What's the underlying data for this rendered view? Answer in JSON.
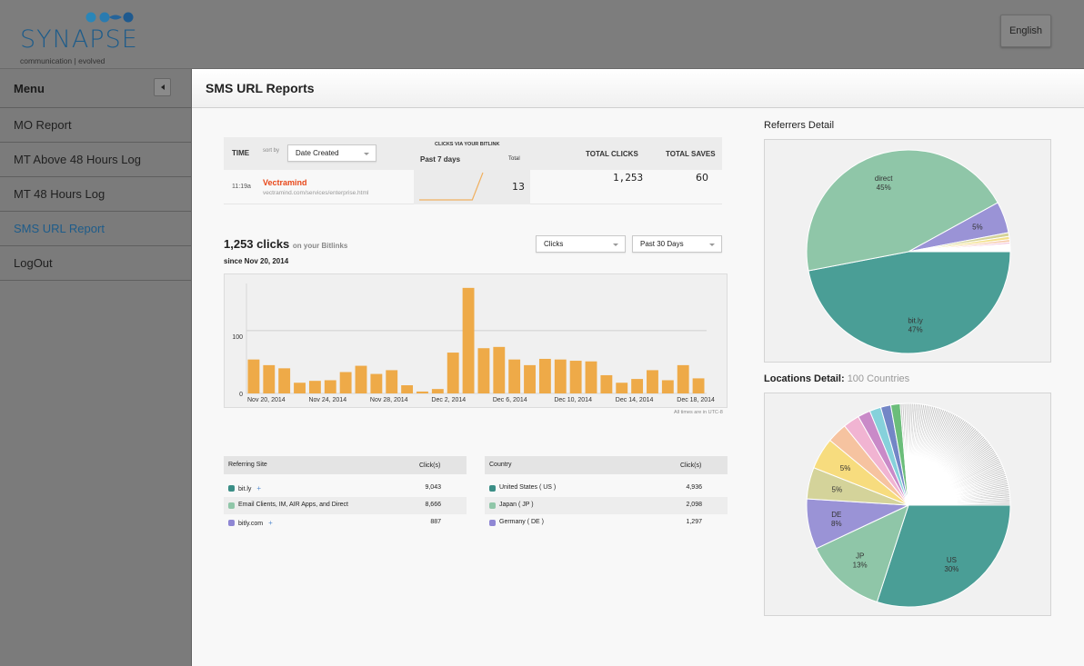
{
  "header": {
    "logo_word": "SYNAPSE",
    "logo_tagline": "communication | evolved",
    "language_button": "English"
  },
  "sidebar": {
    "title": "Menu",
    "items": [
      {
        "label": "MO Report",
        "active": false
      },
      {
        "label": "MT Above 48 Hours Log",
        "active": false
      },
      {
        "label": "MT 48 Hours Log",
        "active": false
      },
      {
        "label": "SMS URL Report",
        "active": true
      },
      {
        "label": "LogOut",
        "active": false
      }
    ]
  },
  "page": {
    "title": "SMS URL Reports"
  },
  "link_table": {
    "col_time": "TIME",
    "sort_by_label": "sort by",
    "sort_by_value": "Date Created",
    "clicks_via_label": "CLICKS VIA YOUR BITLINK",
    "past_7_days": "Past 7 days",
    "total_label": "Total",
    "col_total_clicks": "TOTAL CLICKS",
    "col_total_saves": "TOTAL SAVES",
    "row": {
      "time": "11:19a",
      "title": "Vectramind",
      "url": "vectramind.com/services/enterprise.html",
      "past7_total": "13",
      "total_clicks": "1,253",
      "total_saves": "60",
      "sparkline": [
        0,
        0,
        0,
        0,
        0,
        0,
        13
      ]
    }
  },
  "clicks_summary": {
    "count": "1,253 clicks",
    "suffix": "on your Bitlinks",
    "since": "since Nov 20, 2014",
    "metric_select": "Clicks",
    "range_select": "Past 30 Days",
    "timezone_note": "All times are in UTC-8"
  },
  "chart_data": [
    {
      "type": "bar",
      "title": "Clicks per day",
      "categories": [
        "Nov 20",
        "Nov 21",
        "Nov 22",
        "Nov 23",
        "Nov 24",
        "Nov 25",
        "Nov 26",
        "Nov 27",
        "Nov 28",
        "Nov 29",
        "Nov 30",
        "Dec 1",
        "Dec 2",
        "Dec 3",
        "Dec 4",
        "Dec 5",
        "Dec 6",
        "Dec 7",
        "Dec 8",
        "Dec 9",
        "Dec 10",
        "Dec 11",
        "Dec 12",
        "Dec 13",
        "Dec 14",
        "Dec 15",
        "Dec 16",
        "Dec 17",
        "Dec 18",
        "Dec 19"
      ],
      "values": [
        54,
        45,
        40,
        17,
        20,
        21,
        34,
        44,
        31,
        37,
        13,
        3,
        7,
        65,
        168,
        72,
        74,
        54,
        45,
        55,
        54,
        52,
        51,
        29,
        17,
        23,
        37,
        21,
        45,
        24
      ],
      "xtick_labels": [
        "Nov 20, 2014",
        "Nov 24, 2014",
        "Nov 28, 2014",
        "Dec 2, 2014",
        "Dec 6, 2014",
        "Dec 10, 2014",
        "Dec 14, 2014",
        "Dec 18, 2014"
      ],
      "xtick_indices": [
        0,
        4,
        8,
        12,
        16,
        20,
        24,
        28
      ],
      "yticks": [
        0,
        100
      ],
      "ylim": [
        0,
        175
      ],
      "grid": true,
      "color": "#eeaa48"
    },
    {
      "type": "pie",
      "title": "Referrers Detail",
      "slices": [
        {
          "label": "bit.ly",
          "value": 47,
          "color": "#4a9e96",
          "show_label": true
        },
        {
          "label": "direct",
          "value": 45,
          "color": "#8fc6a8",
          "show_label": true
        },
        {
          "label": "",
          "value": 5,
          "color": "#9a93d6",
          "show_label": true
        },
        {
          "label": "",
          "value": 0.6,
          "color": "#d4d39a",
          "show_label": false
        },
        {
          "label": "",
          "value": 0.5,
          "color": "#f3e08a",
          "show_label": false
        },
        {
          "label": "",
          "value": 0.4,
          "color": "#f6c9a8",
          "show_label": false
        },
        {
          "label": "",
          "value": 0.3,
          "color": "#f1b9d4",
          "show_label": false
        },
        {
          "label": "",
          "value": 1.2,
          "color": "#ffffff",
          "show_label": false
        }
      ]
    },
    {
      "type": "pie",
      "title": "Locations Detail:",
      "subtitle": "100 Countries",
      "slices": [
        {
          "label": "US",
          "value": 30,
          "color": "#4a9e96",
          "show_label": true
        },
        {
          "label": "JP",
          "value": 13,
          "color": "#8fc6a8",
          "show_label": true
        },
        {
          "label": "DE",
          "value": 8,
          "color": "#9a93d6",
          "show_label": true
        },
        {
          "label": "",
          "value": 5,
          "color": "#d4d39a",
          "show_label": true
        },
        {
          "label": "",
          "value": 5,
          "color": "#f7dc7e",
          "show_label": true
        },
        {
          "label": "",
          "value": 3.2,
          "color": "#f6c3a0",
          "show_label": false
        },
        {
          "label": "",
          "value": 2.6,
          "color": "#f1b4d2",
          "show_label": false
        },
        {
          "label": "",
          "value": 2.0,
          "color": "#c98ac8",
          "show_label": false
        },
        {
          "label": "",
          "value": 1.8,
          "color": "#86d1db",
          "show_label": false
        },
        {
          "label": "",
          "value": 1.6,
          "color": "#7386c6",
          "show_label": false
        },
        {
          "label": "",
          "value": 1.5,
          "color": "#6bbd7a",
          "show_label": false
        }
      ],
      "other_count": 89,
      "other_total": 26.3,
      "other_color": "#c2c2c2"
    }
  ],
  "referrers_table": {
    "col_site": "Referring Site",
    "col_clicks": "Click(s)",
    "rows": [
      {
        "name": "bit.ly",
        "clicks": "9,043",
        "color": "#3b8e86",
        "plus": "+"
      },
      {
        "name": "Email Clients, IM, AIR Apps, and Direct",
        "clicks": "8,666",
        "color": "#8fc6a8",
        "plus": ""
      },
      {
        "name": "bitly.com",
        "clicks": "887",
        "color": "#8f87d4",
        "plus": "+"
      }
    ]
  },
  "countries_table": {
    "col_country": "Country",
    "col_clicks": "Click(s)",
    "rows": [
      {
        "name": "United States ( US )",
        "clicks": "4,936",
        "color": "#3b8e86"
      },
      {
        "name": "Japan ( JP )",
        "clicks": "2,098",
        "color": "#8fc6a8"
      },
      {
        "name": "Germany ( DE )",
        "clicks": "1,297",
        "color": "#8f87d4"
      }
    ]
  }
}
